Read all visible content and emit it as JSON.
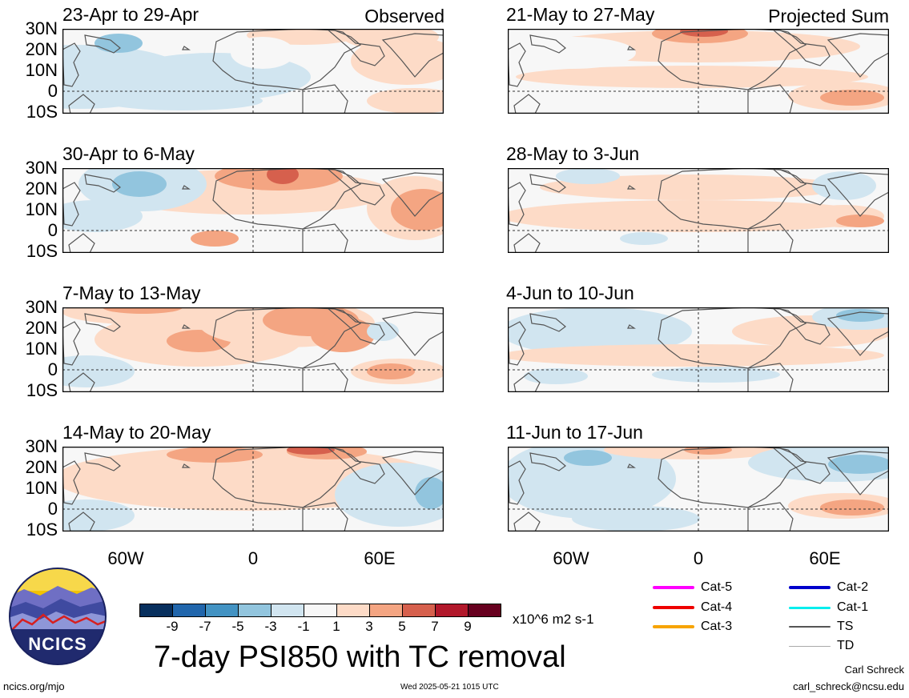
{
  "panels": [
    {
      "range": "23-Apr to 29-Apr",
      "tag": "Observed"
    },
    {
      "range": "21-May to 27-May",
      "tag": "Projected Sum"
    },
    {
      "range": "30-Apr to 6-May",
      "tag": ""
    },
    {
      "range": "28-May to 3-Jun",
      "tag": ""
    },
    {
      "range": "7-May to 13-May",
      "tag": ""
    },
    {
      "range": "4-Jun to 10-Jun",
      "tag": ""
    },
    {
      "range": "14-May to 20-May",
      "tag": ""
    },
    {
      "range": "11-Jun to 17-Jun",
      "tag": ""
    }
  ],
  "lat_labels": [
    "30N",
    "20N",
    "10N",
    "0",
    "10S"
  ],
  "lon_labels": [
    "60W",
    "0",
    "60E"
  ],
  "colorbar": {
    "colors": [
      "#08305e",
      "#2166ac",
      "#4393c3",
      "#92c5de",
      "#d1e5f0",
      "#f7f7f7",
      "#fddbc7",
      "#f4a582",
      "#d6604d",
      "#b2182b",
      "#67001f"
    ],
    "ticks": [
      "-9",
      "-7",
      "-5",
      "-3",
      "-1",
      "1",
      "3",
      "5",
      "7",
      "9"
    ],
    "units": "x10^6 m2 s-1"
  },
  "legend": [
    {
      "label": "Cat-5",
      "color": "#ff00ff"
    },
    {
      "label": "Cat-4",
      "color": "#ee0000"
    },
    {
      "label": "Cat-3",
      "color": "#f7a400"
    },
    {
      "label": "Cat-2",
      "color": "#0000cc"
    },
    {
      "label": "Cat-1",
      "color": "#00eeee"
    },
    {
      "label": "TS",
      "color": "#555555"
    },
    {
      "label": "TD",
      "color": "#aaaaaa"
    }
  ],
  "title": "7-day PSI850 with TC removal",
  "logo_text": "NCICS",
  "site": "ncics.org/mjo",
  "timestamp": "Wed 2025-05-21 1015 UTC",
  "author": "Carl Schreck",
  "email": "carl_schreck@ncsu.edu"
}
